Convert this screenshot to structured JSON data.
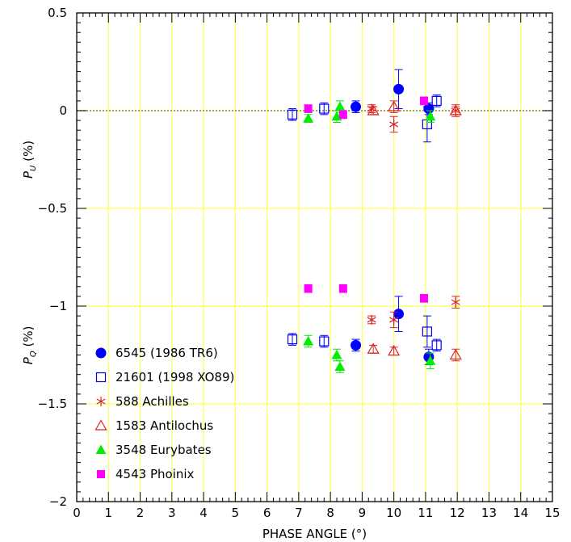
{
  "chart_data": {
    "type": "scatter",
    "xlabel": "PHASE ANGLE (°)",
    "ylabel_upper": {
      "main": "P",
      "sub": "U",
      "unit": " (%)"
    },
    "ylabel_lower": {
      "main": "P",
      "sub": "Q",
      "unit": " (%)"
    },
    "xlim": [
      0,
      15
    ],
    "ylim": [
      -2,
      0.5
    ],
    "xticks": [
      0,
      1,
      2,
      3,
      4,
      5,
      6,
      7,
      8,
      9,
      10,
      11,
      12,
      13,
      14,
      15
    ],
    "yticks": [
      -2,
      -1.5,
      -1,
      -0.5,
      0,
      0.5
    ],
    "ytick_labels": [
      "−2",
      "−1.5",
      "−1",
      "−0.5",
      "0",
      "0.5"
    ],
    "grid": true,
    "grid_color": "#ffff55",
    "zero_line_color": "#888800",
    "legend_position": "lower-left",
    "series": [
      {
        "name": "6545 (1986 TR6)",
        "marker": "filled-circle",
        "color": "#0000ff",
        "points": [
          {
            "x": 8.8,
            "y": 0.02,
            "err": 0.03
          },
          {
            "x": 10.15,
            "y": 0.11,
            "err": 0.1
          },
          {
            "x": 11.1,
            "y": 0.01,
            "err": 0.03
          },
          {
            "x": 8.8,
            "y": -1.2,
            "err": 0.03
          },
          {
            "x": 10.15,
            "y": -1.04,
            "err": 0.09
          },
          {
            "x": 11.1,
            "y": -1.26,
            "err": 0.04
          }
        ]
      },
      {
        "name": "21601 (1998 XO89)",
        "marker": "open-square",
        "color": "#0000ff",
        "points": [
          {
            "x": 6.8,
            "y": -0.02,
            "err": 0.03
          },
          {
            "x": 7.8,
            "y": 0.01,
            "err": 0.03
          },
          {
            "x": 11.05,
            "y": -0.07,
            "err": 0.09
          },
          {
            "x": 11.35,
            "y": 0.05,
            "err": 0.03
          },
          {
            "x": 6.8,
            "y": -1.17,
            "err": 0.03
          },
          {
            "x": 7.8,
            "y": -1.18,
            "err": 0.03
          },
          {
            "x": 11.05,
            "y": -1.13,
            "err": 0.08
          },
          {
            "x": 11.35,
            "y": -1.2,
            "err": 0.03
          }
        ]
      },
      {
        "name": "588 Achilles",
        "marker": "asterisk",
        "color": "#dd2222",
        "points": [
          {
            "x": 9.3,
            "y": 0.01,
            "err": 0.02
          },
          {
            "x": 10.0,
            "y": -0.07,
            "err": 0.04
          },
          {
            "x": 11.95,
            "y": 0.0,
            "err": 0.02
          },
          {
            "x": 9.3,
            "y": -1.07,
            "err": 0.02
          },
          {
            "x": 10.0,
            "y": -1.07,
            "err": 0.04
          },
          {
            "x": 11.95,
            "y": -0.98,
            "err": 0.03
          }
        ]
      },
      {
        "name": "1583 Antilochus",
        "marker": "open-triangle",
        "color": "#dd2222",
        "points": [
          {
            "x": 9.35,
            "y": 0.0,
            "err": 0.02
          },
          {
            "x": 10.0,
            "y": 0.02,
            "err": 0.03
          },
          {
            "x": 11.95,
            "y": 0.0,
            "err": 0.03
          },
          {
            "x": 9.35,
            "y": -1.22,
            "err": 0.02
          },
          {
            "x": 10.0,
            "y": -1.23,
            "err": 0.02
          },
          {
            "x": 11.95,
            "y": -1.25,
            "err": 0.03
          }
        ]
      },
      {
        "name": "3548 Eurybates",
        "marker": "filled-triangle",
        "color": "#00ee00",
        "points": [
          {
            "x": 7.3,
            "y": -0.04,
            "err": 0.02
          },
          {
            "x": 8.2,
            "y": -0.03,
            "err": 0.03
          },
          {
            "x": 8.3,
            "y": 0.02,
            "err": 0.03
          },
          {
            "x": 11.15,
            "y": -0.03,
            "err": 0.03
          },
          {
            "x": 7.3,
            "y": -1.18,
            "err": 0.03
          },
          {
            "x": 8.2,
            "y": -1.25,
            "err": 0.03
          },
          {
            "x": 8.3,
            "y": -1.31,
            "err": 0.03
          },
          {
            "x": 11.15,
            "y": -1.28,
            "err": 0.04
          }
        ]
      },
      {
        "name": "4543 Phoinix",
        "marker": "filled-square",
        "color": "#ff00ff",
        "points": [
          {
            "x": 7.3,
            "y": 0.01,
            "err": 0.02
          },
          {
            "x": 8.4,
            "y": -0.02,
            "err": 0.02
          },
          {
            "x": 10.95,
            "y": 0.05,
            "err": 0.02
          },
          {
            "x": 7.3,
            "y": -0.91,
            "err": 0.02
          },
          {
            "x": 8.4,
            "y": -0.91,
            "err": 0.02
          },
          {
            "x": 10.95,
            "y": -0.96,
            "err": 0.02
          }
        ]
      }
    ]
  }
}
